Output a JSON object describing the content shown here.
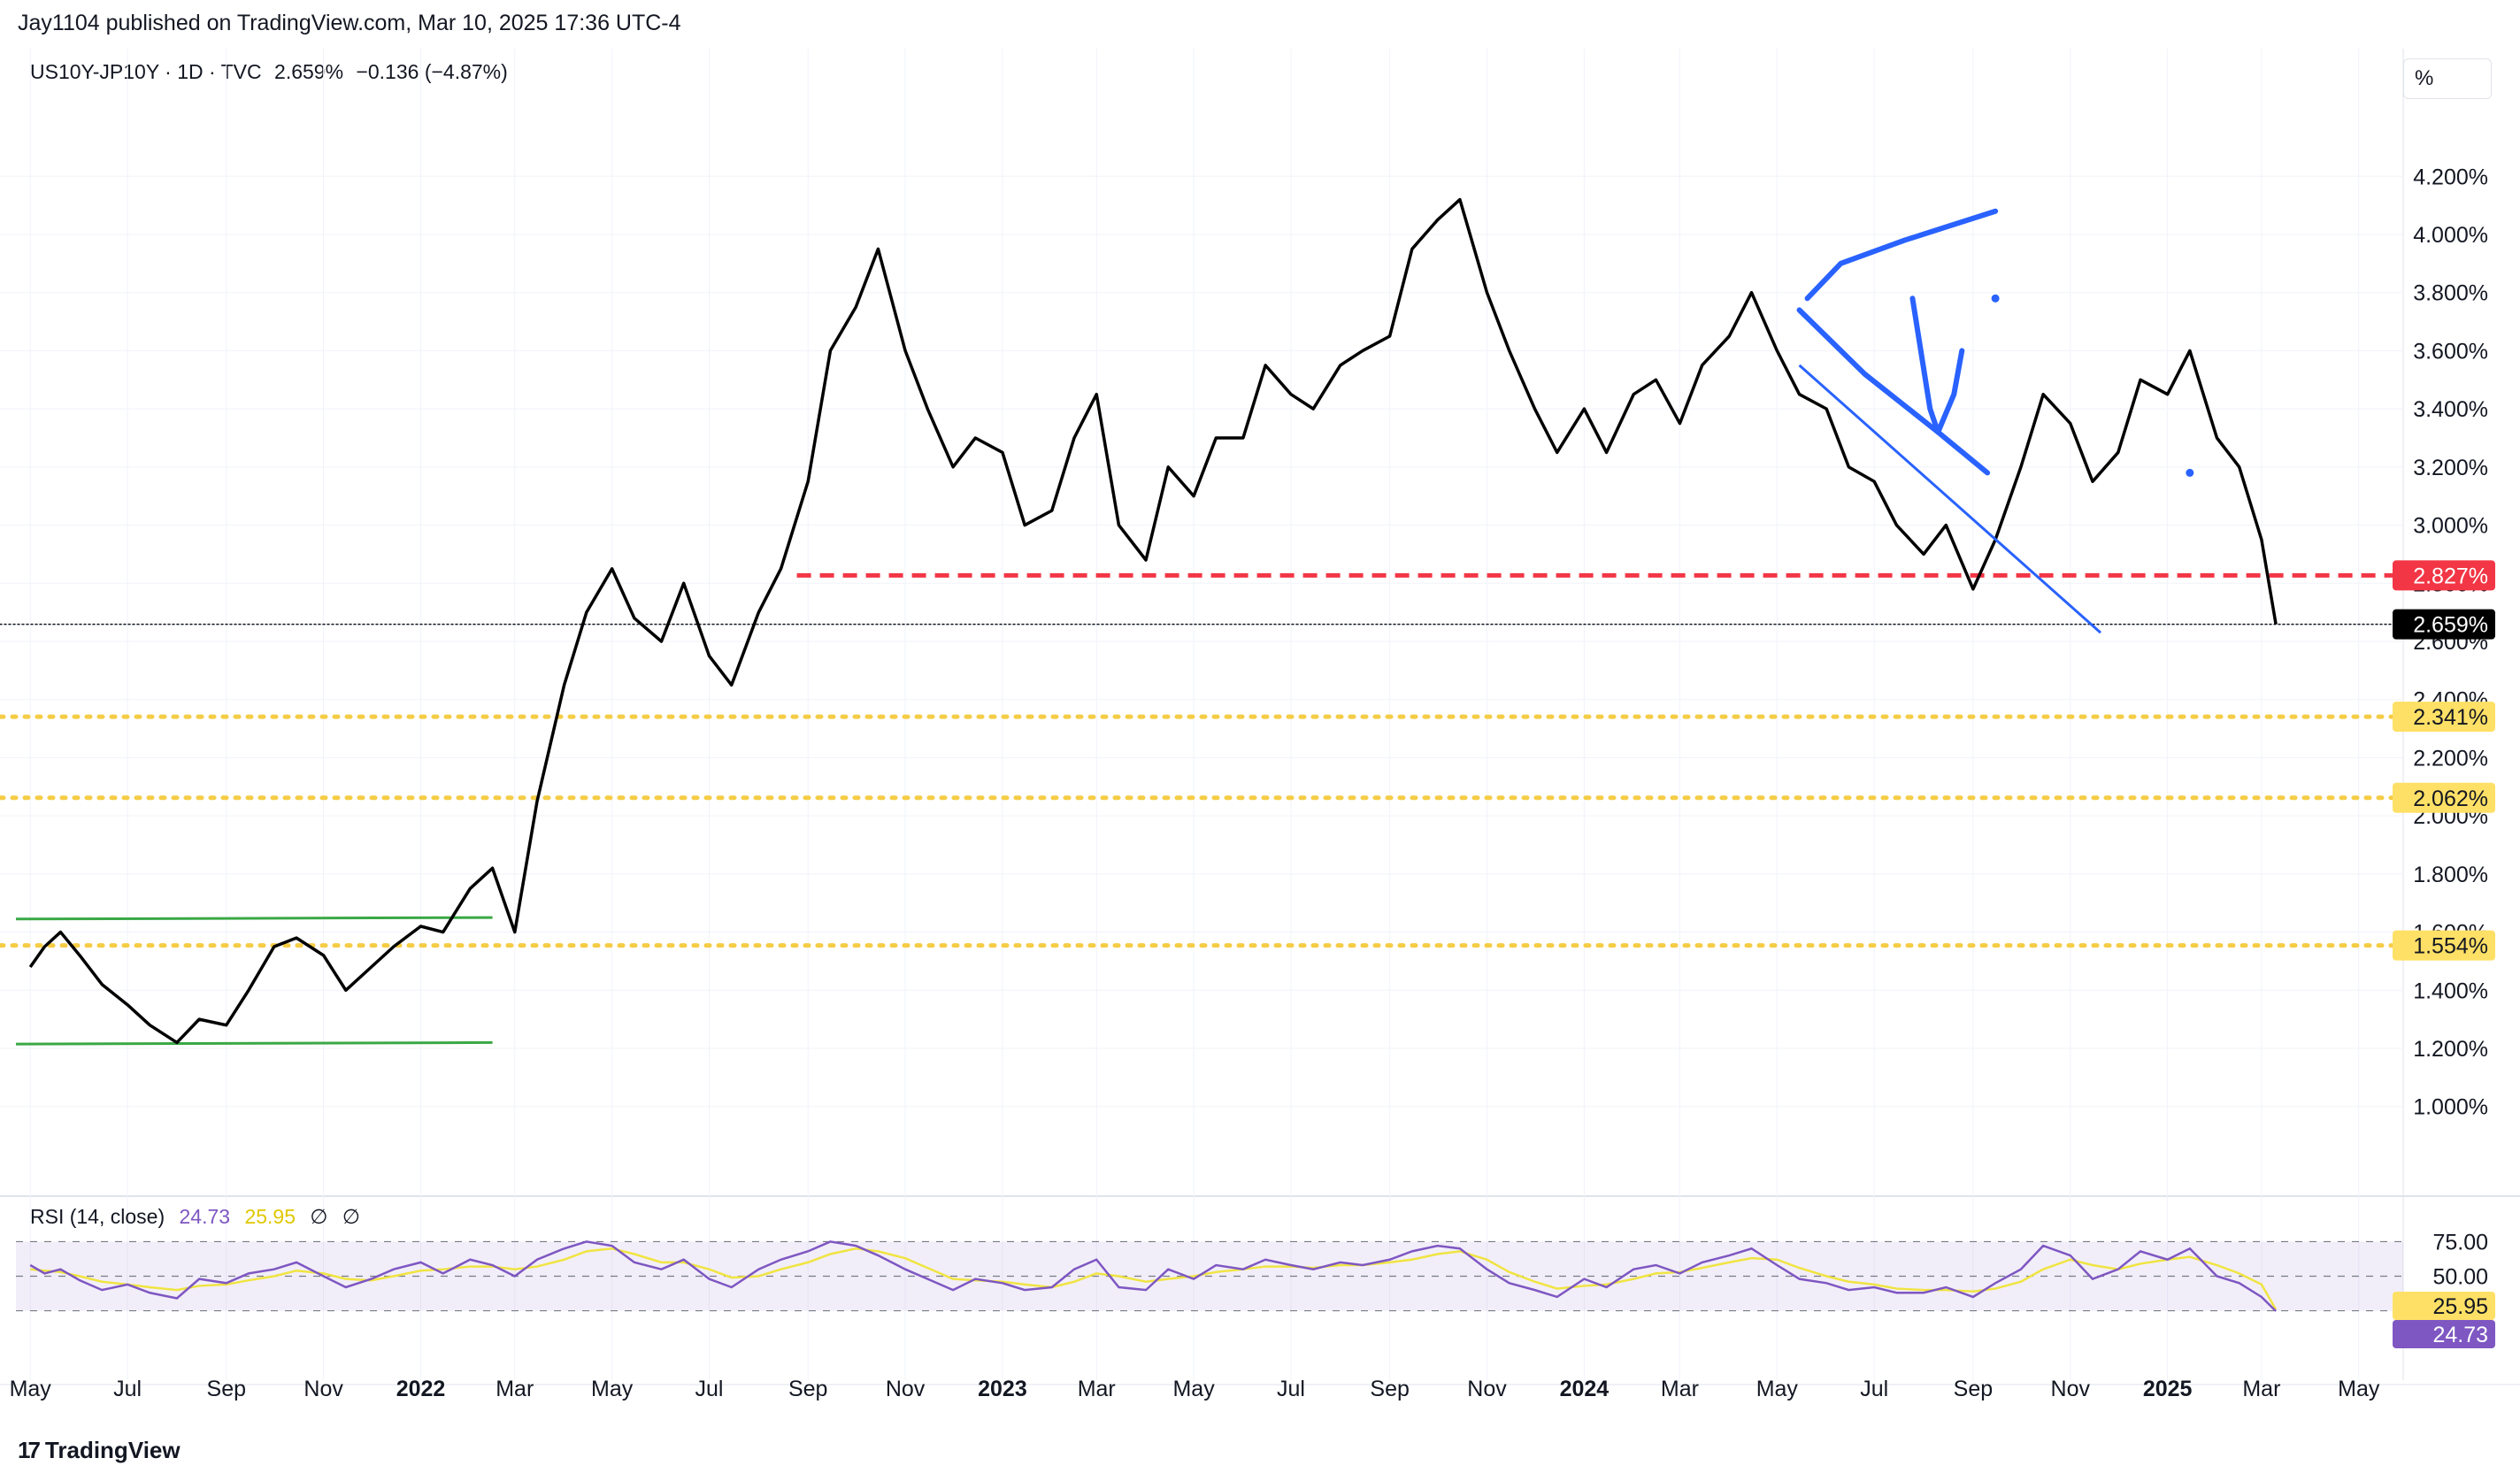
{
  "header": {
    "publish_text": "Jay1104 published on TradingView.com, Mar 10, 2025 17:36 UTC-4",
    "symbol": "US10Y-JP10Y · 1D · TVC",
    "last": "2.659%",
    "change": "−0.136 (−4.87%)",
    "unit_button": "%"
  },
  "rsi_legend": {
    "title": "RSI (14, close)",
    "rsi_value": "24.73",
    "ma_value": "25.95",
    "sym1": "∅",
    "sym2": "∅"
  },
  "footer": {
    "logo_glyph": "17",
    "brand": "TradingView"
  },
  "colors": {
    "price_line": "#000000",
    "rsi_line": "#7e57c2",
    "rsi_ma": "#f0e442",
    "support_yellow": "#f5cc45",
    "resistance_red": "#f23645",
    "range_green": "#3aa845",
    "drawing_blue": "#2962ff",
    "rsi_band": "#7e57c2"
  },
  "chart_data": [
    {
      "type": "line",
      "series": [
        {
          "name": "US10Y-JP10Y",
          "x": [
            "2021-05-01",
            "2021-05-10",
            "2021-05-20",
            "2021-06-01",
            "2021-06-15",
            "2021-07-01",
            "2021-07-15",
            "2021-08-01",
            "2021-08-15",
            "2021-09-01",
            "2021-09-15",
            "2021-10-01",
            "2021-10-15",
            "2021-11-01",
            "2021-11-15",
            "2021-12-01",
            "2021-12-15",
            "2022-01-01",
            "2022-01-15",
            "2022-02-01",
            "2022-02-15",
            "2022-03-01",
            "2022-03-15",
            "2022-04-01",
            "2022-04-15",
            "2022-05-01",
            "2022-05-15",
            "2022-06-01",
            "2022-06-15",
            "2022-07-01",
            "2022-07-15",
            "2022-08-01",
            "2022-08-15",
            "2022-09-01",
            "2022-09-15",
            "2022-10-01",
            "2022-10-15",
            "2022-11-01",
            "2022-11-15",
            "2022-12-01",
            "2022-12-15",
            "2023-01-01",
            "2023-01-15",
            "2023-02-01",
            "2023-02-15",
            "2023-03-01",
            "2023-03-15",
            "2023-04-01",
            "2023-04-15",
            "2023-05-01",
            "2023-05-15",
            "2023-06-01",
            "2023-06-15",
            "2023-07-01",
            "2023-07-15",
            "2023-08-01",
            "2023-08-15",
            "2023-09-01",
            "2023-09-15",
            "2023-10-01",
            "2023-10-15",
            "2023-11-01",
            "2023-11-15",
            "2023-12-01",
            "2023-12-15",
            "2024-01-01",
            "2024-01-15",
            "2024-02-01",
            "2024-02-15",
            "2024-03-01",
            "2024-03-15",
            "2024-04-01",
            "2024-04-15",
            "2024-05-01",
            "2024-05-15",
            "2024-06-01",
            "2024-06-15",
            "2024-07-01",
            "2024-07-15",
            "2024-08-01",
            "2024-08-15",
            "2024-09-01",
            "2024-09-15",
            "2024-10-01",
            "2024-10-15",
            "2024-11-01",
            "2024-11-15",
            "2024-12-01",
            "2024-12-15",
            "2025-01-01",
            "2025-01-15",
            "2025-02-01",
            "2025-02-15",
            "2025-03-01",
            "2025-03-10"
          ],
          "values": [
            1.48,
            1.55,
            1.6,
            1.52,
            1.42,
            1.35,
            1.28,
            1.22,
            1.3,
            1.28,
            1.4,
            1.55,
            1.58,
            1.52,
            1.4,
            1.48,
            1.55,
            1.62,
            1.6,
            1.75,
            1.82,
            1.6,
            2.05,
            2.45,
            2.7,
            2.85,
            2.68,
            2.6,
            2.8,
            2.55,
            2.45,
            2.7,
            2.85,
            3.15,
            3.6,
            3.75,
            3.95,
            3.6,
            3.4,
            3.2,
            3.3,
            3.25,
            3.0,
            3.05,
            3.3,
            3.45,
            3.0,
            2.88,
            3.2,
            3.1,
            3.3,
            3.3,
            3.55,
            3.45,
            3.4,
            3.55,
            3.6,
            3.65,
            3.95,
            4.05,
            4.12,
            3.8,
            3.6,
            3.4,
            3.25,
            3.4,
            3.25,
            3.45,
            3.5,
            3.35,
            3.55,
            3.65,
            3.8,
            3.6,
            3.45,
            3.4,
            3.2,
            3.15,
            3.0,
            2.9,
            3.0,
            2.78,
            2.95,
            3.2,
            3.45,
            3.35,
            3.15,
            3.25,
            3.5,
            3.45,
            3.6,
            3.3,
            3.2,
            2.95,
            2.659
          ]
        }
      ],
      "xlabel": "",
      "ylabel": "",
      "ylim": [
        0.85,
        4.35
      ],
      "y_ticks": [
        "4.200%",
        "4.000%",
        "3.800%",
        "3.600%",
        "3.400%",
        "3.200%",
        "3.000%",
        "2.800%",
        "2.600%",
        "2.400%",
        "2.200%",
        "2.000%",
        "1.800%",
        "1.600%",
        "1.400%",
        "1.200%",
        "1.000%"
      ],
      "y_tick_values": [
        4.2,
        4.0,
        3.8,
        3.6,
        3.4,
        3.2,
        3.0,
        2.8,
        2.6,
        2.4,
        2.2,
        2.0,
        1.8,
        1.6,
        1.4,
        1.2,
        1.0
      ],
      "x_ticks": [
        {
          "label": "May",
          "date": "2021-05-01",
          "bold": false
        },
        {
          "label": "Jul",
          "date": "2021-07-01",
          "bold": false
        },
        {
          "label": "Sep",
          "date": "2021-09-01",
          "bold": false
        },
        {
          "label": "Nov",
          "date": "2021-11-01",
          "bold": false
        },
        {
          "label": "2022",
          "date": "2022-01-01",
          "bold": true
        },
        {
          "label": "Mar",
          "date": "2022-03-01",
          "bold": false
        },
        {
          "label": "May",
          "date": "2022-05-01",
          "bold": false
        },
        {
          "label": "Jul",
          "date": "2022-07-01",
          "bold": false
        },
        {
          "label": "Sep",
          "date": "2022-09-01",
          "bold": false
        },
        {
          "label": "Nov",
          "date": "2022-11-01",
          "bold": false
        },
        {
          "label": "2023",
          "date": "2023-01-01",
          "bold": true
        },
        {
          "label": "Mar",
          "date": "2023-03-01",
          "bold": false
        },
        {
          "label": "May",
          "date": "2023-05-01",
          "bold": false
        },
        {
          "label": "Jul",
          "date": "2023-07-01",
          "bold": false
        },
        {
          "label": "Sep",
          "date": "2023-09-01",
          "bold": false
        },
        {
          "label": "Nov",
          "date": "2023-11-01",
          "bold": false
        },
        {
          "label": "2024",
          "date": "2024-01-01",
          "bold": true
        },
        {
          "label": "Mar",
          "date": "2024-03-01",
          "bold": false
        },
        {
          "label": "May",
          "date": "2024-05-01",
          "bold": false
        },
        {
          "label": "Jul",
          "date": "2024-07-01",
          "bold": false
        },
        {
          "label": "Sep",
          "date": "2024-09-01",
          "bold": false
        },
        {
          "label": "Nov",
          "date": "2024-11-01",
          "bold": false
        },
        {
          "label": "2025",
          "date": "2025-01-01",
          "bold": true
        },
        {
          "label": "Mar",
          "date": "2025-03-01",
          "bold": false
        },
        {
          "label": "May",
          "date": "2025-05-01",
          "bold": false
        }
      ],
      "x_domain": [
        "2021-04-22",
        "2025-05-20"
      ],
      "grid": true,
      "levels": [
        {
          "name": "resistance",
          "value": 2.827,
          "label": "2.827%",
          "style": "dashed",
          "color": "#f23645",
          "from": "2022-08-25"
        },
        {
          "name": "last-price",
          "value": 2.659,
          "label": "2.659%",
          "style": "dotted",
          "color": "#131722"
        },
        {
          "name": "support-1",
          "value": 2.341,
          "label": "2.341%",
          "style": "dotted",
          "color": "#f5cc45"
        },
        {
          "name": "support-2",
          "value": 2.062,
          "label": "2.062%",
          "style": "dotted",
          "color": "#f5cc45"
        },
        {
          "name": "support-3",
          "value": 1.554,
          "label": "1.554%",
          "style": "dotted",
          "color": "#f5cc45"
        }
      ],
      "range_lines": [
        {
          "name": "range-top",
          "from": [
            "2021-04-22",
            1.645
          ],
          "to": [
            "2022-02-15",
            1.65
          ]
        },
        {
          "name": "range-bottom",
          "from": [
            "2021-04-22",
            1.215
          ],
          "to": [
            "2022-02-15",
            1.22
          ]
        }
      ],
      "annotations": [
        {
          "name": "trendline",
          "kind": "line",
          "points": [
            [
              "2024-05-15",
              3.55
            ],
            [
              "2024-11-20",
              2.63
            ]
          ]
        },
        {
          "name": "check-stroke",
          "kind": "path",
          "points": [
            [
              "2024-05-20",
              3.78
            ],
            [
              "2024-06-10",
              3.9
            ],
            [
              "2024-07-20",
              3.98
            ],
            [
              "2024-09-15",
              4.08
            ]
          ]
        },
        {
          "name": "scribble-line",
          "kind": "path",
          "points": [
            [
              "2024-05-15",
              3.74
            ],
            [
              "2024-06-25",
              3.52
            ],
            [
              "2024-08-10",
              3.32
            ],
            [
              "2024-09-10",
              3.18
            ]
          ]
        },
        {
          "name": "arrow-stroke",
          "kind": "path",
          "points": [
            [
              "2024-07-25",
              3.78
            ],
            [
              "2024-08-05",
              3.4
            ],
            [
              "2024-08-10",
              3.32
            ],
            [
              "2024-08-20",
              3.45
            ],
            [
              "2024-08-25",
              3.6
            ]
          ]
        },
        {
          "name": "dot-1",
          "kind": "dot",
          "point": [
            "2024-09-15",
            3.78
          ]
        },
        {
          "name": "dot-2",
          "kind": "dot",
          "point": [
            "2025-01-15",
            3.18
          ]
        }
      ]
    },
    {
      "type": "line",
      "title": "RSI (14, close)",
      "series": [
        {
          "name": "RSI",
          "values": [
            58,
            52,
            55,
            47,
            40,
            44,
            38,
            34,
            48,
            45,
            52,
            55,
            60,
            50,
            42,
            48,
            55,
            60,
            52,
            62,
            58,
            50,
            62,
            70,
            75,
            72,
            60,
            55,
            62,
            48,
            42,
            55,
            62,
            68,
            75,
            72,
            65,
            55,
            48,
            40,
            48,
            45,
            40,
            42,
            55,
            62,
            42,
            40,
            55,
            48,
            58,
            55,
            62,
            58,
            55,
            60,
            58,
            62,
            68,
            72,
            70,
            55,
            45,
            40,
            35,
            48,
            42,
            55,
            58,
            52,
            60,
            65,
            70,
            58,
            48,
            45,
            40,
            42,
            38,
            38,
            42,
            35,
            45,
            55,
            72,
            65,
            48,
            55,
            68,
            62,
            70,
            50,
            45,
            35,
            24.73
          ]
        },
        {
          "name": "RSI-based MA",
          "values": [
            55,
            54,
            53,
            50,
            46,
            44,
            42,
            40,
            43,
            44,
            47,
            50,
            54,
            52,
            48,
            47,
            50,
            54,
            55,
            57,
            57,
            55,
            57,
            62,
            68,
            70,
            66,
            60,
            60,
            55,
            49,
            50,
            55,
            60,
            66,
            70,
            68,
            63,
            56,
            48,
            47,
            46,
            44,
            42,
            46,
            52,
            50,
            46,
            48,
            50,
            53,
            55,
            57,
            57,
            56,
            58,
            58,
            60,
            62,
            66,
            68,
            62,
            53,
            46,
            41,
            43,
            44,
            48,
            52,
            53,
            56,
            60,
            63,
            62,
            56,
            50,
            46,
            44,
            41,
            40,
            40,
            39,
            41,
            46,
            55,
            62,
            58,
            55,
            59,
            62,
            64,
            58,
            52,
            44,
            25.95
          ]
        }
      ],
      "ylim": [
        10,
        90
      ],
      "y_ticks": [
        "75.00",
        "50.00"
      ],
      "y_tick_values": [
        75,
        50
      ],
      "band": [
        25,
        75
      ],
      "value_labels": [
        {
          "name": "ma",
          "value": 25.95,
          "label": "25.95"
        },
        {
          "name": "rsi",
          "value": 24.73,
          "label": "24.73"
        }
      ]
    }
  ]
}
